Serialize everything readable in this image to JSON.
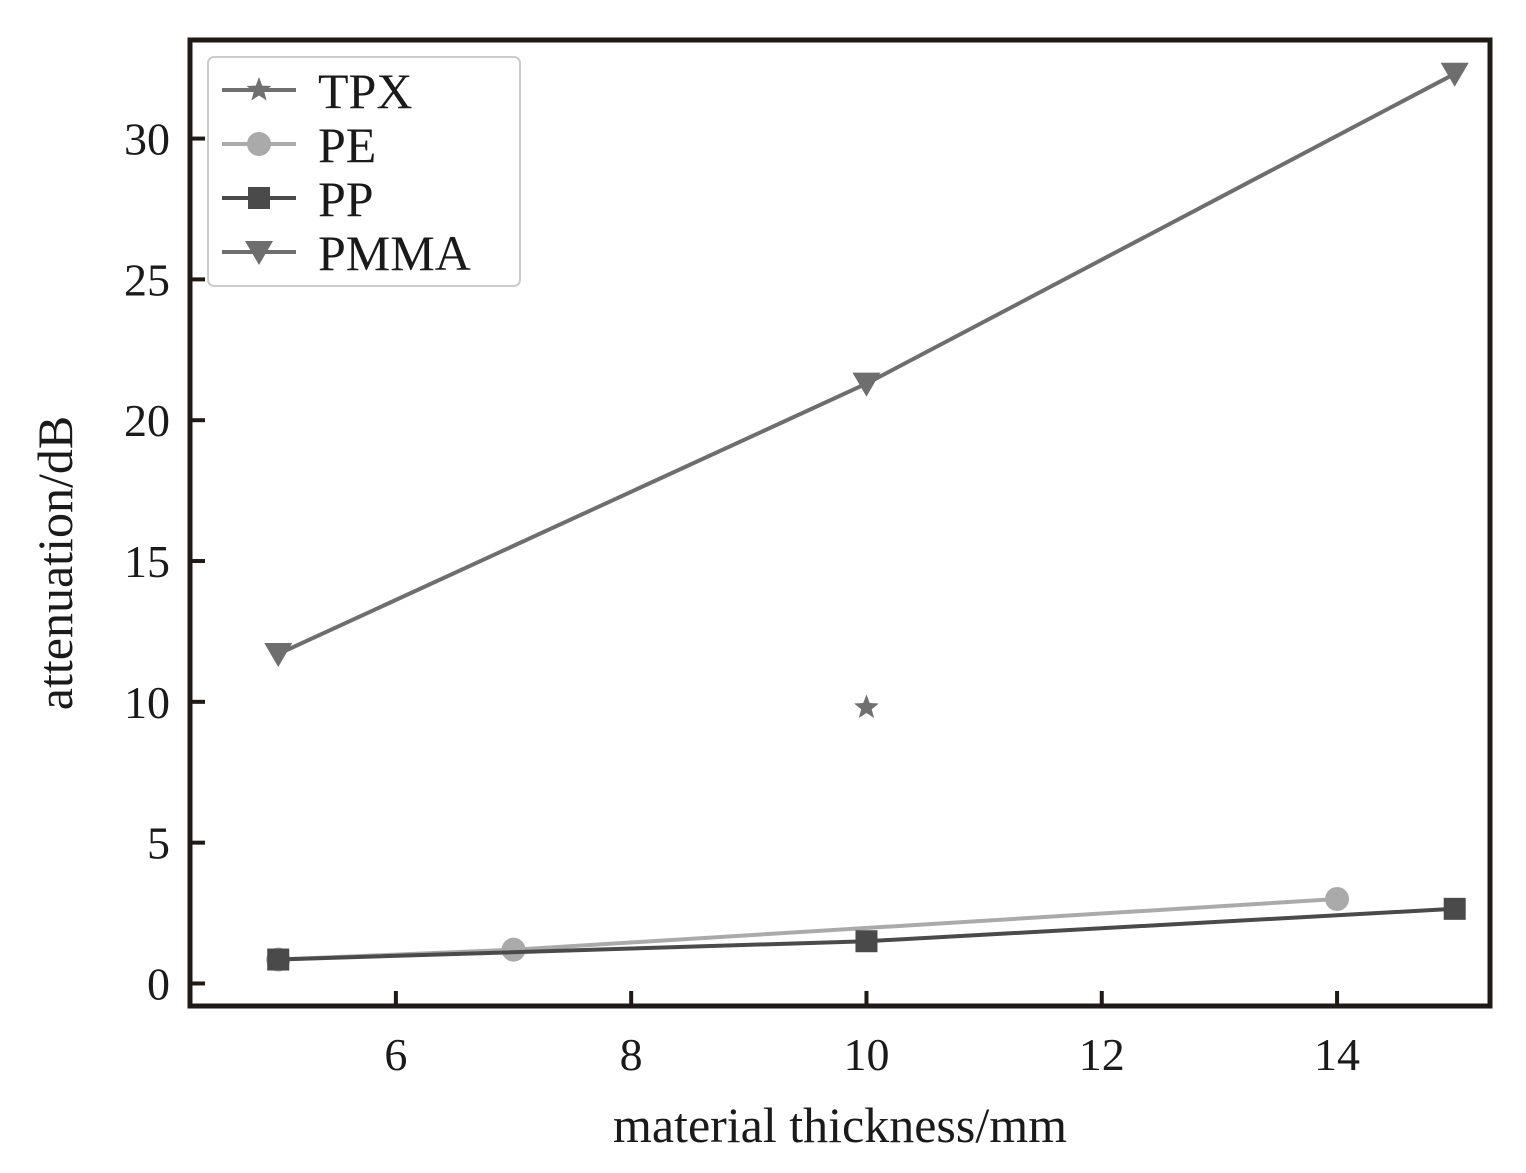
{
  "chart_data": {
    "type": "line",
    "title": "",
    "xlabel": "material thickness/mm",
    "ylabel": "attenuation/dB",
    "xlim": [
      4.25,
      15.3
    ],
    "ylim": [
      -0.8,
      33.5
    ],
    "xticks": [
      6,
      8,
      10,
      12,
      14
    ],
    "yticks": [
      0,
      5,
      10,
      15,
      20,
      25,
      30
    ],
    "grid": false,
    "legend_position": "top-left",
    "series": [
      {
        "name": "TPX",
        "marker": "star",
        "color": "#707070",
        "x": [
          10
        ],
        "y": [
          9.8
        ]
      },
      {
        "name": "PE",
        "marker": "circle",
        "color": "#aaaaaa",
        "x": [
          5,
          7,
          14
        ],
        "y": [
          0.85,
          1.2,
          3.0
        ]
      },
      {
        "name": "PP",
        "marker": "square",
        "color": "#4a4a4a",
        "x": [
          5,
          10,
          15
        ],
        "y": [
          0.85,
          1.5,
          2.65
        ]
      },
      {
        "name": "PMMA",
        "marker": "triangle-down",
        "color": "#6e6e6e",
        "x": [
          5,
          10,
          15
        ],
        "y": [
          11.7,
          21.3,
          32.3
        ]
      }
    ]
  }
}
